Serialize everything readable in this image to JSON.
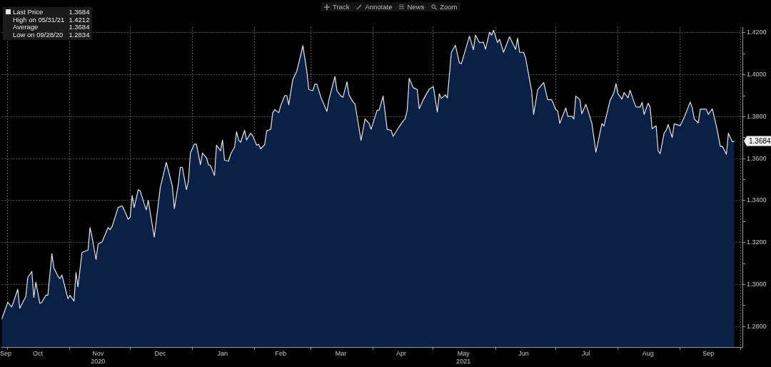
{
  "chart_data": {
    "type": "area",
    "x": [
      "2020-09-28",
      "2020-10-01",
      "2020-10-03",
      "2020-10-06",
      "2020-10-07",
      "2020-10-10",
      "2020-10-11",
      "2020-10-13",
      "2020-10-14",
      "2020-10-15",
      "2020-10-17",
      "2020-10-18",
      "2020-10-20",
      "2020-10-21",
      "2020-10-23",
      "2020-10-24",
      "2020-10-26",
      "2020-10-27",
      "2020-10-28",
      "2020-10-31",
      "2020-11-01",
      "2020-11-03",
      "2020-11-04",
      "2020-11-05",
      "2020-11-07",
      "2020-11-10",
      "2020-11-11",
      "2020-11-12",
      "2020-11-14",
      "2020-11-15",
      "2020-11-17",
      "2020-11-20",
      "2020-11-21",
      "2020-11-22",
      "2020-11-25",
      "2020-11-27",
      "2020-11-28",
      "2020-11-30",
      "2020-12-01",
      "2020-12-02",
      "2020-12-03",
      "2020-12-05",
      "2020-12-06",
      "2020-12-08",
      "2020-12-09",
      "2020-12-10",
      "2020-12-13",
      "2020-12-16",
      "2020-12-19",
      "2020-12-22",
      "2020-12-23",
      "2020-12-25",
      "2020-12-26",
      "2020-12-27",
      "2020-12-29",
      "2020-12-30",
      "2020-12-31",
      "2021-01-02",
      "2021-01-03",
      "2021-01-05",
      "2021-01-06",
      "2021-01-08",
      "2021-01-09",
      "2021-01-10",
      "2021-01-12",
      "2021-01-13",
      "2021-01-15",
      "2021-01-16",
      "2021-01-17",
      "2021-01-19",
      "2021-01-20",
      "2021-01-22",
      "2021-01-23",
      "2021-01-24",
      "2021-01-25",
      "2021-01-27",
      "2021-01-28",
      "2021-01-30",
      "2021-01-31",
      "2021-02-02",
      "2021-02-03",
      "2021-02-04",
      "2021-02-06",
      "2021-02-07",
      "2021-02-09",
      "2021-02-10",
      "2021-02-11",
      "2021-02-13",
      "2021-02-14",
      "2021-02-16",
      "2021-02-17",
      "2021-02-18",
      "2021-02-20",
      "2021-02-22",
      "2021-02-24",
      "2021-02-25",
      "2021-02-27",
      "2021-02-28",
      "2021-03-02",
      "2021-03-03",
      "2021-03-04",
      "2021-03-06",
      "2021-03-09",
      "2021-03-10",
      "2021-03-13",
      "2021-03-14",
      "2021-03-16",
      "2021-03-17",
      "2021-03-19",
      "2021-03-20",
      "2021-03-22",
      "2021-03-23",
      "2021-03-26",
      "2021-03-28",
      "2021-03-30",
      "2021-03-31",
      "2021-04-03",
      "2021-04-04",
      "2021-04-06",
      "2021-04-08",
      "2021-04-10",
      "2021-04-11",
      "2021-04-13",
      "2021-04-14",
      "2021-04-16",
      "2021-04-17",
      "2021-04-18",
      "2021-04-19",
      "2021-04-21",
      "2021-04-23",
      "2021-04-24",
      "2021-04-26",
      "2021-04-28",
      "2021-04-29",
      "2021-05-01",
      "2021-05-03",
      "2021-05-04",
      "2021-05-05",
      "2021-05-07",
      "2021-05-08",
      "2021-05-10",
      "2021-05-12",
      "2021-05-14",
      "2021-05-15",
      "2021-05-19",
      "2021-05-21",
      "2021-05-22",
      "2021-05-24",
      "2021-05-26",
      "2021-05-27",
      "2021-05-29",
      "2021-05-30",
      "2021-05-31",
      "2021-06-02",
      "2021-06-03",
      "2021-06-05",
      "2021-06-08",
      "2021-06-11",
      "2021-06-12",
      "2021-06-13",
      "2021-06-15",
      "2021-06-16",
      "2021-06-19",
      "2021-06-20",
      "2021-06-22",
      "2021-06-25",
      "2021-06-27",
      "2021-06-29",
      "2021-07-01",
      "2021-07-02",
      "2021-07-03",
      "2021-07-06",
      "2021-07-07",
      "2021-07-09",
      "2021-07-10",
      "2021-07-11",
      "2021-07-13",
      "2021-07-14",
      "2021-07-16",
      "2021-07-17",
      "2021-07-19",
      "2021-07-21",
      "2021-07-24",
      "2021-07-25",
      "2021-07-28",
      "2021-07-30",
      "2021-07-31",
      "2021-08-01",
      "2021-08-03",
      "2021-08-04",
      "2021-08-06",
      "2021-08-07",
      "2021-08-09",
      "2021-08-10",
      "2021-08-12",
      "2021-08-13",
      "2021-08-14",
      "2021-08-16",
      "2021-08-17",
      "2021-08-18",
      "2021-08-20",
      "2021-08-21",
      "2021-08-22",
      "2021-08-24",
      "2021-08-25",
      "2021-08-26",
      "2021-08-28",
      "2021-08-29",
      "2021-09-01",
      "2021-09-03",
      "2021-09-06",
      "2021-09-07",
      "2021-09-08",
      "2021-09-10",
      "2021-09-11",
      "2021-09-14",
      "2021-09-15",
      "2021-09-17",
      "2021-09-18",
      "2021-09-19",
      "2021-09-21",
      "2021-09-22",
      "2021-09-24",
      "2021-09-25",
      "2021-09-27",
      "2021-09-28"
    ],
    "series": [
      {
        "name": "Last Price",
        "color": "#e6e6e6",
        "values": [
          1.2834,
          1.2915,
          1.2893,
          1.2977,
          1.2887,
          1.2943,
          1.3034,
          1.3062,
          1.2938,
          1.3011,
          1.291,
          1.2915,
          1.2949,
          1.2949,
          1.3147,
          1.3079,
          1.304,
          1.3028,
          1.3045,
          1.2932,
          1.2949,
          1.2921,
          1.3057,
          1.2989,
          1.3153,
          1.3164,
          1.3271,
          1.3226,
          1.3119,
          1.3192,
          1.3203,
          1.3271,
          1.3262,
          1.3277,
          1.3367,
          1.3375,
          1.3356,
          1.3311,
          1.3322,
          1.3424,
          1.3367,
          1.3452,
          1.3446,
          1.3384,
          1.3356,
          1.3401,
          1.3226,
          1.3463,
          1.3582,
          1.3469,
          1.3362,
          1.348,
          1.3559,
          1.3559,
          1.3452,
          1.3492,
          1.3627,
          1.3669,
          1.3669,
          1.3571,
          1.3627,
          1.3604,
          1.3571,
          1.3567,
          1.352,
          1.3664,
          1.3638,
          1.3689,
          1.3593,
          1.3588,
          1.3621,
          1.3655,
          1.3729,
          1.3689,
          1.3678,
          1.3735,
          1.3689,
          1.3721,
          1.371,
          1.3664,
          1.3669,
          1.3647,
          1.3667,
          1.3732,
          1.374,
          1.3819,
          1.3834,
          1.3819,
          1.3853,
          1.3901,
          1.3901,
          1.3857,
          1.3977,
          1.4017,
          1.4096,
          1.4139,
          1.4017,
          1.3929,
          1.3924,
          1.3955,
          1.3955,
          1.3893,
          1.3825,
          1.3881,
          1.3992,
          1.3924,
          1.3898,
          1.3893,
          1.3966,
          1.3904,
          1.387,
          1.3861,
          1.3687,
          1.3789,
          1.3768,
          1.374,
          1.3831,
          1.3831,
          1.3898,
          1.374,
          1.3735,
          1.3706,
          1.3737,
          1.3752,
          1.378,
          1.3791,
          1.3831,
          1.3983,
          1.3938,
          1.3929,
          1.3838,
          1.3881,
          1.3915,
          1.3932,
          1.3944,
          1.3822,
          1.3909,
          1.3887,
          1.3904,
          1.3889,
          1.4107,
          1.4141,
          1.4056,
          1.4053,
          1.4184,
          1.4119,
          1.4189,
          1.4153,
          1.4155,
          1.4122,
          1.4203,
          1.4189,
          1.4212,
          1.4153,
          1.4169,
          1.4107,
          1.4181,
          1.4121,
          1.4175,
          1.4107,
          1.4107,
          1.4079,
          1.3921,
          1.3811,
          1.3929,
          1.3963,
          1.3881,
          1.3881,
          1.3834,
          1.3827,
          1.3768,
          1.3842,
          1.3802,
          1.3802,
          1.3789,
          1.3898,
          1.3881,
          1.3814,
          1.3859,
          1.3831,
          1.3768,
          1.3631,
          1.3768,
          1.3755,
          1.3876,
          1.3915,
          1.3958,
          1.3909,
          1.3884,
          1.3915,
          1.389,
          1.3926,
          1.387,
          1.3847,
          1.3845,
          1.3868,
          1.3811,
          1.3864,
          1.3847,
          1.3743,
          1.3757,
          1.3638,
          1.3624,
          1.3723,
          1.3735,
          1.3763,
          1.3701,
          1.3766,
          1.3757,
          1.3797,
          1.387,
          1.3842,
          1.3789,
          1.3771,
          1.3836,
          1.3836,
          1.3811,
          1.3838,
          1.3797,
          1.3757,
          1.3658,
          1.3659,
          1.3621,
          1.3721,
          1.368,
          1.3684
        ]
      }
    ],
    "xlim": [
      "2020-09-28",
      "2021-10-02"
    ],
    "xticks": [
      {
        "value": "2020-09-30",
        "label": "Sep"
      },
      {
        "value": "2020-10-01",
        "label": null
      },
      {
        "value": "2020-10-16",
        "label": "Oct"
      },
      {
        "value": "2020-11-01",
        "label": null
      },
      {
        "value": "2020-11-15",
        "label": "Nov\n2020"
      },
      {
        "value": "2020-12-01",
        "label": null
      },
      {
        "value": "2020-12-16",
        "label": "Dec"
      },
      {
        "value": "2021-01-01",
        "label": null
      },
      {
        "value": "2021-01-16",
        "label": "Jan"
      },
      {
        "value": "2021-02-01",
        "label": null
      },
      {
        "value": "2021-02-14",
        "label": "Feb"
      },
      {
        "value": "2021-03-01",
        "label": null
      },
      {
        "value": "2021-03-16",
        "label": "Mar"
      },
      {
        "value": "2021-04-01",
        "label": null
      },
      {
        "value": "2021-04-15",
        "label": "Apr"
      },
      {
        "value": "2021-05-01",
        "label": null
      },
      {
        "value": "2021-05-16",
        "label": "May\n2021"
      },
      {
        "value": "2021-06-01",
        "label": null
      },
      {
        "value": "2021-06-15",
        "label": "Jun"
      },
      {
        "value": "2021-07-01",
        "label": null
      },
      {
        "value": "2021-07-16",
        "label": "Jul"
      },
      {
        "value": "2021-08-01",
        "label": null
      },
      {
        "value": "2021-08-16",
        "label": "Aug"
      },
      {
        "value": "2021-09-01",
        "label": null
      },
      {
        "value": "2021-09-15",
        "label": "Sep"
      },
      {
        "value": "2021-10-01",
        "label": null
      }
    ],
    "ylim": [
      1.2702,
      1.4227
    ],
    "yticks": [
      {
        "value": 1.28,
        "label": "1.2800"
      },
      {
        "value": 1.29,
        "label": null
      },
      {
        "value": 1.3,
        "label": "1.3000"
      },
      {
        "value": 1.31,
        "label": null
      },
      {
        "value": 1.32,
        "label": "1.3200"
      },
      {
        "value": 1.33,
        "label": null
      },
      {
        "value": 1.34,
        "label": "1.3400"
      },
      {
        "value": 1.35,
        "label": null
      },
      {
        "value": 1.36,
        "label": "1.3600"
      },
      {
        "value": 1.37,
        "label": null
      },
      {
        "value": 1.38,
        "label": "1.3800"
      },
      {
        "value": 1.39,
        "label": null
      },
      {
        "value": 1.4,
        "label": "1.4000"
      },
      {
        "value": 1.41,
        "label": null
      },
      {
        "value": 1.42,
        "label": "1.4200"
      }
    ],
    "grid": true,
    "legend": "top left",
    "annotations": [
      "1.3684",
      "High on 05/31/21",
      "1.4212",
      "Average",
      "1.3684",
      "Low on 09/28/20",
      "1.2834",
      "Track",
      "Annotate",
      "News",
      "Zoom",
      {
        "text": "1.3684",
        "y": 1.3684
      }
    ]
  }
}
